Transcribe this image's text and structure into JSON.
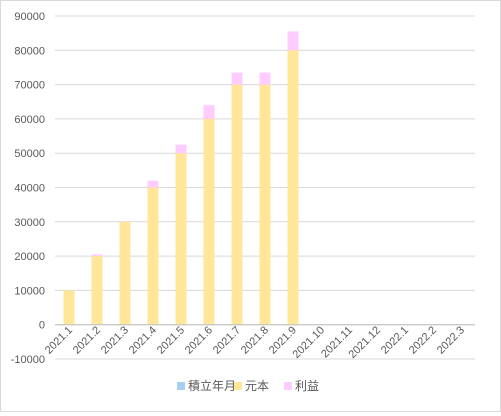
{
  "chart_data": {
    "type": "bar",
    "stacked": true,
    "categories": [
      "2021.1",
      "2021.2",
      "2021.3",
      "2021.4",
      "2021.5",
      "2021.6",
      "2021.7",
      "2021.8",
      "2021.9",
      "2021.10",
      "2021.11",
      "2021.12",
      "2022.1",
      "2022.2",
      "2022.3"
    ],
    "series": [
      {
        "name": "積立年月",
        "color": "#a9cff0",
        "values": [
          null,
          null,
          null,
          null,
          null,
          null,
          null,
          null,
          null,
          null,
          null,
          null,
          null,
          null,
          null
        ]
      },
      {
        "name": "元本",
        "color": "#ffe699",
        "values": [
          10000,
          20000,
          30000,
          40000,
          50000,
          60000,
          70000,
          70000,
          80000,
          null,
          null,
          null,
          null,
          null,
          null
        ]
      },
      {
        "name": "利益",
        "color": "#ffccff",
        "values": [
          0,
          500,
          0,
          2000,
          2500,
          4000,
          3500,
          3500,
          5500,
          null,
          null,
          null,
          null,
          null,
          null
        ]
      }
    ],
    "yticks": [
      "-10000",
      "0",
      "10000",
      "20000",
      "30000",
      "40000",
      "50000",
      "60000",
      "70000",
      "80000",
      "90000"
    ],
    "ylim": [
      -10000,
      90000
    ],
    "grid": true,
    "legend_position": "bottom"
  }
}
